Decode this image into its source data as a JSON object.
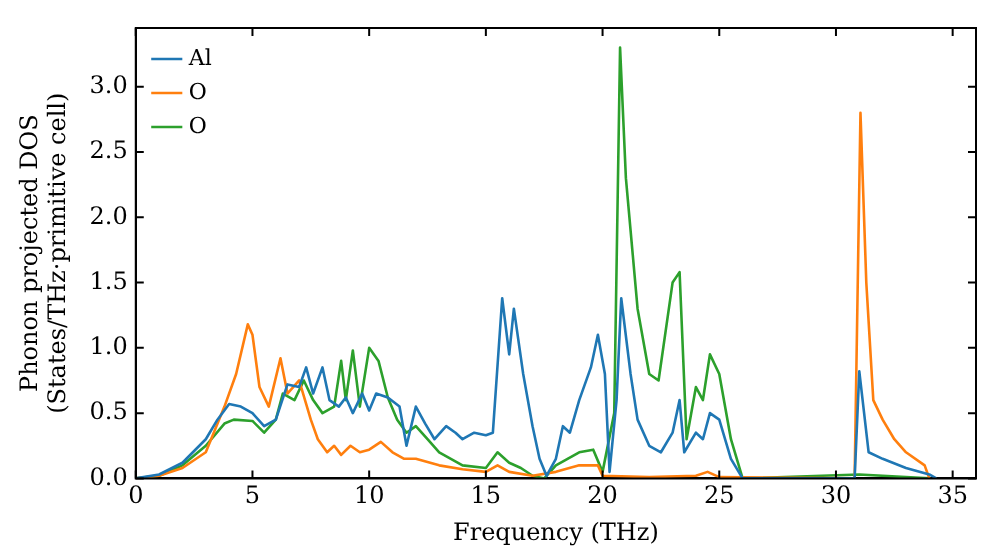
{
  "chart_data": {
    "type": "line",
    "xlabel": "Frequency (THz)",
    "ylabel": "Phonon projected DOS\n(States/THz·primitive cell)",
    "xlim": [
      0,
      36
    ],
    "ylim": [
      0,
      3.45
    ],
    "xticks": [
      0,
      5,
      10,
      15,
      20,
      25,
      30,
      35
    ],
    "yticks": [
      {
        "value": 0,
        "label": "0.0"
      },
      {
        "value": 0.5,
        "label": "0.5"
      },
      {
        "value": 1,
        "label": "1.0"
      },
      {
        "value": 1.5,
        "label": "1.5"
      },
      {
        "value": 2,
        "label": "2.0"
      },
      {
        "value": 2.5,
        "label": "2.5"
      },
      {
        "value": 3,
        "label": "3.0"
      }
    ],
    "grid": false,
    "legend": "top left",
    "marker": "none",
    "line_style": "solid",
    "series": [
      {
        "name": "Al",
        "color": "#1f77b4",
        "x": [
          0,
          1,
          2,
          3,
          3.5,
          4,
          4.5,
          5,
          5.5,
          6,
          6.5,
          7,
          7.3,
          7.6,
          8,
          8.3,
          8.7,
          9,
          9.3,
          9.7,
          10,
          10.3,
          10.8,
          11.3,
          11.6,
          12,
          12.4,
          12.8,
          13.3,
          13.7,
          14,
          14.5,
          15,
          15.3,
          15.7,
          16,
          16.2,
          16.6,
          17,
          17.3,
          17.6,
          18,
          18.3,
          18.6,
          19,
          19.5,
          19.8,
          20.1,
          20.3,
          20.6,
          20.8,
          21.2,
          21.5,
          22,
          22.5,
          23,
          23.3,
          23.5,
          24,
          24.3,
          24.6,
          25,
          25.5,
          26,
          30.8,
          31,
          31.4,
          32,
          33,
          34,
          34.3
        ],
        "values": [
          0,
          0.03,
          0.12,
          0.3,
          0.45,
          0.57,
          0.55,
          0.5,
          0.4,
          0.45,
          0.72,
          0.7,
          0.85,
          0.65,
          0.85,
          0.6,
          0.55,
          0.62,
          0.5,
          0.65,
          0.52,
          0.65,
          0.62,
          0.55,
          0.25,
          0.55,
          0.42,
          0.3,
          0.4,
          0.35,
          0.3,
          0.35,
          0.33,
          0.35,
          1.38,
          0.95,
          1.3,
          0.8,
          0.4,
          0.15,
          0.02,
          0.15,
          0.4,
          0.35,
          0.6,
          0.85,
          1.1,
          0.8,
          0.05,
          0.6,
          1.38,
          0.8,
          0.45,
          0.25,
          0.2,
          0.35,
          0.6,
          0.2,
          0.35,
          0.3,
          0.5,
          0.45,
          0.15,
          0,
          0,
          0.82,
          0.2,
          0.15,
          0.08,
          0.03,
          0
        ]
      },
      {
        "name": "O",
        "color": "#ff7f0e",
        "x": [
          0,
          1,
          2,
          3,
          3.8,
          4.3,
          4.8,
          5,
          5.3,
          5.7,
          6.2,
          6.5,
          7,
          7.5,
          7.8,
          8.2,
          8.5,
          8.8,
          9.2,
          9.6,
          10,
          10.5,
          11,
          11.5,
          12,
          13,
          14,
          15,
          15.5,
          16,
          17,
          18,
          19,
          19.8,
          20,
          22,
          24,
          24.5,
          25,
          30.8,
          31.05,
          31.3,
          31.6,
          32,
          32.5,
          33,
          33.8,
          34
        ],
        "values": [
          0,
          0.02,
          0.08,
          0.2,
          0.55,
          0.8,
          1.18,
          1.1,
          0.7,
          0.55,
          0.92,
          0.65,
          0.75,
          0.45,
          0.3,
          0.2,
          0.25,
          0.18,
          0.25,
          0.2,
          0.22,
          0.28,
          0.2,
          0.15,
          0.15,
          0.1,
          0.07,
          0.05,
          0.1,
          0.05,
          0.02,
          0.05,
          0.1,
          0.1,
          0.02,
          0.01,
          0.02,
          0.05,
          0.01,
          0,
          2.8,
          1.5,
          0.6,
          0.45,
          0.3,
          0.2,
          0.1,
          0
        ]
      },
      {
        "name": "O",
        "color": "#2ca02c",
        "x": [
          0,
          1,
          2,
          3,
          3.8,
          4.2,
          5,
          5.5,
          6,
          6.3,
          6.8,
          7.2,
          7.6,
          8,
          8.5,
          8.8,
          9,
          9.3,
          9.6,
          10,
          10.4,
          10.8,
          11.2,
          11.6,
          12,
          12.5,
          13,
          13.5,
          14,
          15,
          15.5,
          16,
          16.5,
          17,
          17.5,
          18,
          18.5,
          19,
          19.6,
          20,
          20.5,
          20.75,
          21,
          21.5,
          22,
          22.4,
          23,
          23.3,
          23.6,
          24,
          24.3,
          24.6,
          25,
          25.5,
          26,
          31,
          34
        ],
        "values": [
          0,
          0.02,
          0.1,
          0.25,
          0.42,
          0.45,
          0.44,
          0.35,
          0.45,
          0.65,
          0.6,
          0.75,
          0.6,
          0.5,
          0.55,
          0.9,
          0.6,
          0.98,
          0.55,
          1.0,
          0.9,
          0.62,
          0.45,
          0.35,
          0.4,
          0.3,
          0.2,
          0.15,
          0.1,
          0.08,
          0.2,
          0.12,
          0.08,
          0.02,
          0,
          0.1,
          0.15,
          0.2,
          0.22,
          0.05,
          0.5,
          3.3,
          2.3,
          1.3,
          0.8,
          0.75,
          1.5,
          1.58,
          0.3,
          0.7,
          0.6,
          0.95,
          0.8,
          0.3,
          0,
          0.03,
          0
        ]
      }
    ]
  }
}
